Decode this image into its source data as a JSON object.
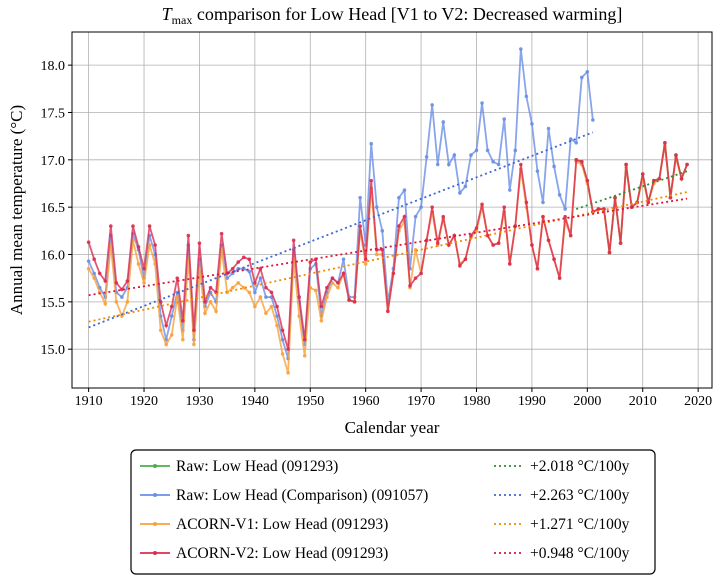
{
  "chart_data": {
    "type": "line",
    "title_prefix": "T",
    "title_sub": "max",
    "title_rest": " comparison for Low Head   [V1 to V2: Decreased warming]",
    "xlabel": "Calendar year",
    "ylabel": "Annual mean temperature (°C)",
    "xlim": [
      1907,
      2022.5
    ],
    "ylim": [
      14.59,
      18.35
    ],
    "xticks": [
      1910,
      1920,
      1930,
      1940,
      1950,
      1960,
      1970,
      1980,
      1990,
      2000,
      2010,
      2020
    ],
    "yticks": [
      {
        "value": 15,
        "label": "15.0"
      },
      15.5,
      {
        "value": 16,
        "label": "16.0"
      },
      16.5,
      {
        "value": 17,
        "label": "17.0"
      },
      17.5,
      {
        "value": 18,
        "label": "18.0"
      }
    ],
    "grid": true,
    "x": [
      1910,
      1911,
      1912,
      1913,
      1914,
      1915,
      1916,
      1917,
      1918,
      1919,
      1920,
      1921,
      1922,
      1923,
      1924,
      1925,
      1926,
      1927,
      1928,
      1929,
      1930,
      1931,
      1932,
      1933,
      1934,
      1935,
      1936,
      1937,
      1938,
      1939,
      1940,
      1941,
      1942,
      1943,
      1944,
      1945,
      1946,
      1947,
      1948,
      1949,
      1950,
      1951,
      1952,
      1953,
      1954,
      1955,
      1956,
      1957,
      1958,
      1959,
      1960,
      1961,
      1962,
      1963,
      1964,
      1965,
      1966,
      1967,
      1968,
      1969,
      1970,
      1971,
      1972,
      1973,
      1974,
      1975,
      1976,
      1977,
      1978,
      1979,
      1980,
      1981,
      1982,
      1983,
      1984,
      1985,
      1986,
      1987,
      1988,
      1989,
      1990,
      1991,
      1992,
      1993,
      1994,
      1995,
      1996,
      1997,
      1998,
      1999,
      2000,
      2001,
      2002,
      2003,
      2004,
      2005,
      2006,
      2007,
      2008,
      2009,
      2010,
      2011,
      2012,
      2013,
      2014,
      2015,
      2016,
      2017,
      2018
    ],
    "series": [
      {
        "name": "Raw: Low Head (091293)",
        "color": "#4daf4a",
        "values": [
          null,
          null,
          null,
          null,
          null,
          null,
          null,
          null,
          null,
          null,
          null,
          null,
          null,
          null,
          null,
          null,
          null,
          null,
          null,
          null,
          null,
          null,
          null,
          null,
          null,
          null,
          null,
          null,
          null,
          null,
          null,
          null,
          null,
          null,
          null,
          null,
          null,
          null,
          null,
          null,
          null,
          null,
          null,
          null,
          null,
          null,
          null,
          null,
          null,
          null,
          null,
          null,
          null,
          null,
          null,
          null,
          null,
          null,
          null,
          null,
          null,
          null,
          null,
          null,
          null,
          null,
          null,
          null,
          null,
          null,
          null,
          null,
          null,
          null,
          null,
          null,
          null,
          null,
          null,
          null,
          null,
          null,
          null,
          null,
          null,
          null,
          null,
          null,
          17.0,
          16.98,
          16.78,
          16.45,
          16.48,
          16.48,
          16.02,
          16.6,
          16.12,
          16.95,
          16.5,
          16.55,
          16.85,
          16.55,
          16.78,
          16.8,
          17.18,
          16.6,
          17.05,
          16.8,
          16.95
        ]
      },
      {
        "name": "Raw: Low Head (Comparison) (091057)",
        "color": "#6a8fe6",
        "values": [
          15.93,
          15.8,
          15.65,
          15.55,
          16.2,
          15.6,
          15.55,
          15.65,
          16.22,
          16.05,
          15.75,
          16.2,
          16.0,
          15.35,
          15.1,
          15.35,
          15.6,
          15.2,
          16.1,
          15.1,
          15.95,
          15.45,
          15.6,
          15.5,
          16.1,
          15.75,
          15.8,
          15.85,
          15.85,
          15.82,
          15.6,
          15.75,
          15.55,
          15.55,
          15.35,
          15.1,
          14.9,
          16.05,
          15.5,
          15.05,
          15.85,
          15.9,
          15.35,
          15.6,
          15.75,
          15.7,
          15.95,
          15.55,
          15.55,
          16.6,
          16.1,
          17.17,
          16.5,
          16.25,
          15.5,
          15.85,
          16.6,
          16.68,
          15.85,
          16.4,
          16.5,
          17.03,
          17.58,
          16.95,
          17.4,
          16.95,
          17.05,
          16.65,
          16.72,
          17.05,
          17.1,
          17.6,
          17.1,
          16.98,
          16.95,
          17.43,
          16.68,
          17.1,
          18.17,
          17.67,
          17.38,
          16.88,
          16.55,
          17.33,
          16.93,
          16.63,
          16.48,
          17.22,
          17.18,
          17.87,
          17.93,
          17.42,
          null,
          null,
          null,
          null,
          null,
          null,
          null,
          null,
          null,
          null,
          null,
          null,
          null,
          null,
          null,
          null,
          null
        ]
      },
      {
        "name": "ACORN-V1: Low Head (091293)",
        "color": "#f9a13a",
        "values": [
          15.85,
          15.75,
          15.6,
          15.48,
          16.1,
          15.5,
          15.35,
          15.5,
          16.15,
          15.9,
          15.7,
          16.1,
          15.9,
          15.2,
          15.05,
          15.15,
          15.55,
          15.1,
          15.95,
          15.05,
          15.85,
          15.38,
          15.5,
          15.4,
          16.05,
          15.6,
          15.65,
          15.7,
          15.65,
          15.6,
          15.45,
          15.55,
          15.38,
          15.45,
          15.25,
          14.95,
          14.75,
          15.95,
          15.35,
          14.93,
          15.65,
          15.62,
          15.3,
          15.55,
          15.7,
          15.65,
          15.8,
          15.52,
          15.5,
          16.25,
          15.9,
          16.7,
          16.0,
          16.0,
          15.4,
          15.8,
          16.25,
          16.35,
          15.65,
          16.05,
          15.8,
          16.15,
          16.45,
          16.1,
          16.38,
          16.1,
          16.2,
          15.9,
          15.95,
          16.18,
          16.25,
          16.5,
          16.2,
          16.1,
          16.12,
          16.45,
          15.9,
          16.3,
          16.9,
          16.5,
          16.1,
          15.85,
          16.4,
          16.15,
          15.95,
          15.75,
          16.35,
          16.2,
          16.98,
          16.95,
          16.75,
          16.45,
          16.48,
          16.48,
          16.02,
          16.6,
          16.12,
          16.92,
          16.5,
          16.55,
          16.8,
          16.55,
          16.75,
          16.8,
          17.15,
          16.6,
          17.02,
          16.8,
          16.95
        ]
      },
      {
        "name": "ACORN-V2: Low Head (091293)",
        "color": "#dc2c50",
        "values": [
          16.13,
          15.95,
          15.8,
          15.72,
          16.3,
          15.7,
          15.63,
          15.72,
          16.3,
          16.08,
          15.85,
          16.3,
          16.1,
          15.5,
          15.25,
          15.45,
          15.75,
          15.3,
          16.2,
          15.2,
          16.12,
          15.5,
          15.65,
          15.6,
          16.22,
          15.8,
          15.85,
          15.92,
          15.97,
          15.95,
          15.7,
          15.85,
          15.65,
          15.6,
          15.45,
          15.2,
          15.0,
          16.15,
          15.55,
          15.1,
          15.92,
          15.95,
          15.45,
          15.65,
          15.75,
          15.7,
          15.8,
          15.52,
          15.5,
          16.3,
          15.95,
          16.78,
          16.05,
          16.05,
          15.4,
          15.8,
          16.3,
          16.4,
          15.67,
          15.75,
          15.8,
          16.15,
          16.5,
          16.12,
          16.4,
          16.1,
          16.2,
          15.88,
          15.95,
          16.2,
          16.28,
          16.53,
          16.2,
          16.1,
          16.12,
          16.5,
          15.9,
          16.3,
          16.95,
          16.55,
          16.1,
          15.85,
          16.4,
          16.15,
          15.95,
          15.75,
          16.4,
          16.2,
          17.0,
          16.98,
          16.78,
          16.45,
          16.48,
          16.48,
          16.02,
          16.6,
          16.12,
          16.95,
          16.5,
          16.55,
          16.85,
          16.55,
          16.78,
          16.8,
          17.18,
          16.6,
          17.05,
          16.8,
          16.95
        ]
      }
    ],
    "trends": [
      {
        "name": "+2.018 °C/100y",
        "color": "#2e8b2e",
        "x": [
          1998,
          2018
        ],
        "values": [
          16.48,
          16.88
        ]
      },
      {
        "name": "+2.263 °C/100y",
        "color": "#3b68d6",
        "x": [
          1910,
          2001
        ],
        "values": [
          15.23,
          17.29
        ]
      },
      {
        "name": "+1.271 °C/100y",
        "color": "#f08c00",
        "x": [
          1910,
          2018
        ],
        "values": [
          15.29,
          16.66
        ]
      },
      {
        "name": "+0.948 °C/100y",
        "color": "#dc143c",
        "x": [
          1910,
          2018
        ],
        "values": [
          15.57,
          16.59
        ]
      }
    ]
  }
}
